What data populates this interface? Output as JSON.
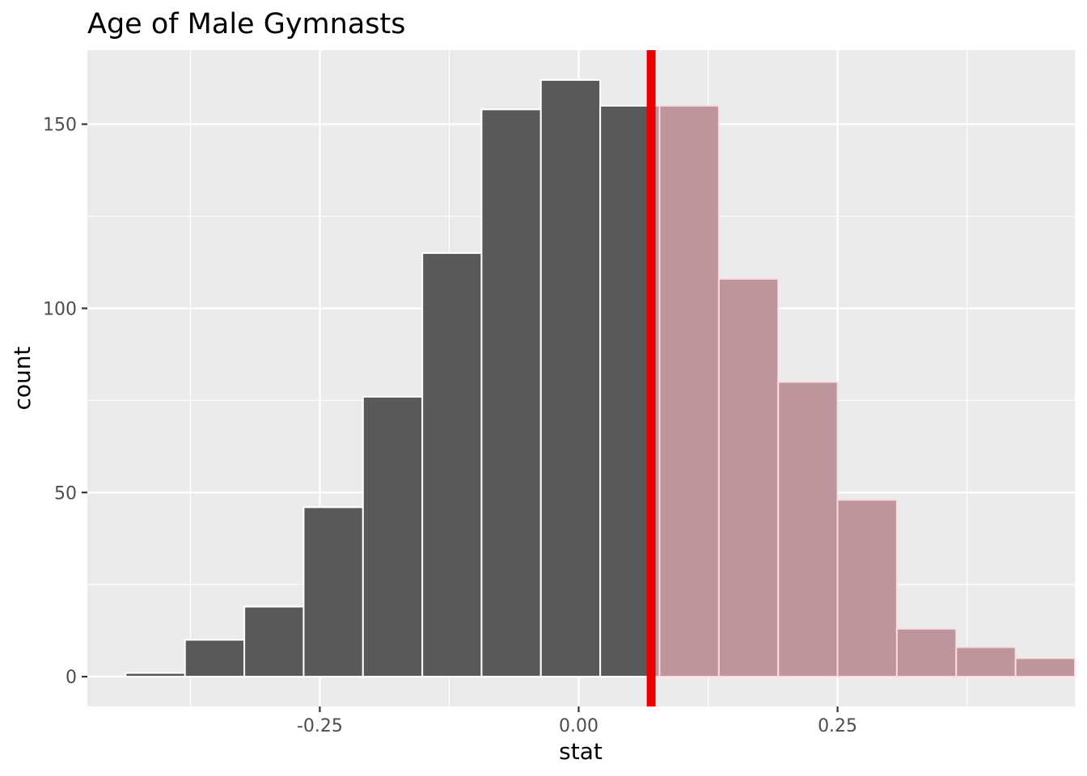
{
  "chart_data": {
    "type": "bar",
    "title": "Age of Male Gymnasts",
    "xlabel": "stat",
    "ylabel": "count",
    "bins": [
      {
        "x0": -0.4375,
        "x1": -0.3802,
        "count": 1
      },
      {
        "x0": -0.3802,
        "x1": -0.3229,
        "count": 10
      },
      {
        "x0": -0.3229,
        "x1": -0.2656,
        "count": 19
      },
      {
        "x0": -0.2656,
        "x1": -0.2083,
        "count": 46
      },
      {
        "x0": -0.2083,
        "x1": -0.151,
        "count": 76
      },
      {
        "x0": -0.151,
        "x1": -0.0938,
        "count": 115
      },
      {
        "x0": -0.0938,
        "x1": -0.0365,
        "count": 154
      },
      {
        "x0": -0.0365,
        "x1": 0.0208,
        "count": 162
      },
      {
        "x0": 0.0208,
        "x1": 0.0781,
        "count": 155
      },
      {
        "x0": 0.0781,
        "x1": 0.1354,
        "count": 155
      },
      {
        "x0": 0.1354,
        "x1": 0.1927,
        "count": 108
      },
      {
        "x0": 0.1927,
        "x1": 0.25,
        "count": 80
      },
      {
        "x0": 0.25,
        "x1": 0.3073,
        "count": 48
      },
      {
        "x0": 0.3073,
        "x1": 0.3646,
        "count": 13
      },
      {
        "x0": 0.3646,
        "x1": 0.4219,
        "count": 8
      },
      {
        "x0": 0.4219,
        "x1": 0.4792,
        "count": 5
      }
    ],
    "observed_stat": 0.07,
    "shade_direction": "right",
    "xlim": [
      -0.4745,
      0.4792
    ],
    "ylim": [
      -8.1,
      170.1
    ],
    "x_ticks": [
      -0.25,
      0.0,
      0.25
    ],
    "x_tick_labels": [
      "-0.25",
      "0.00",
      "0.25"
    ],
    "y_ticks": [
      0,
      50,
      100,
      150
    ],
    "y_tick_labels": [
      "0",
      "50",
      "100",
      "150"
    ],
    "grid": true,
    "legend": "none",
    "colors": {
      "panel_background": "#ebebeb",
      "grid": "#ffffff",
      "bar_fill": "#595959",
      "bar_outline": "#ffffff",
      "shade_fill": "#bc969c",
      "shade_outline": "#ffd9df",
      "observed_line": "#e60000"
    }
  }
}
